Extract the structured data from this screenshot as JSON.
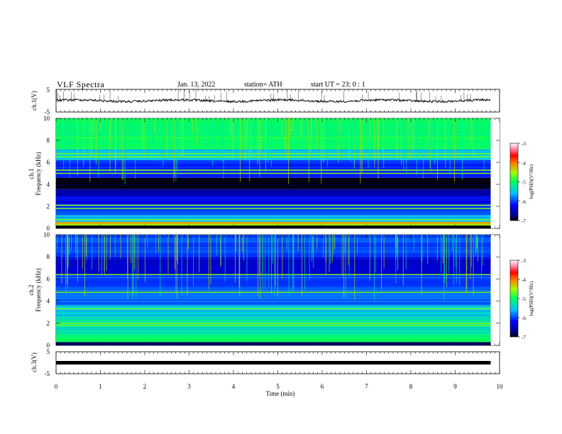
{
  "header": {
    "title": "VLF  Spectra",
    "date": "Jan. 13, 2022",
    "station": "station= ATH",
    "start": "start  UT  =    23: 0   : 1"
  },
  "chart_data": [
    {
      "type": "line",
      "name": "ch1_voltage",
      "ylabel": "ch.1(V)",
      "ylim": [
        -5,
        5
      ],
      "yticks": [
        "5",
        "-5"
      ],
      "xlim": [
        0,
        10
      ],
      "trace_level": 0
    },
    {
      "type": "heatmap",
      "name": "ch1_spectrogram",
      "ylabel": "ch.1\nFrequency (kHz)",
      "ylabel_line1": "ch.1",
      "ylabel_line2": "Frequency  (kHz)",
      "ylim": [
        0,
        10
      ],
      "yticks": [
        "0",
        "2",
        "4",
        "6",
        "8",
        "10"
      ],
      "xlim": [
        0,
        9.8
      ],
      "colorbar": {
        "label": "log(PSD)(V²/Hz)",
        "ticks": [
          "-3",
          "-4",
          "-5",
          "-6",
          "-7"
        ],
        "range": [
          -7,
          -3
        ]
      },
      "bands_khz": [
        {
          "from": 0.0,
          "to": 0.3,
          "level": -7.0
        },
        {
          "from": 0.3,
          "to": 0.6,
          "level": -4.3
        },
        {
          "from": 0.6,
          "to": 1.2,
          "level": -5.6
        },
        {
          "from": 1.2,
          "to": 2.2,
          "level": -6.0
        },
        {
          "from": 2.2,
          "to": 3.0,
          "level": -6.3
        },
        {
          "from": 3.0,
          "to": 3.6,
          "level": -6.6
        },
        {
          "from": 3.6,
          "to": 4.6,
          "level": -7.0
        },
        {
          "from": 4.6,
          "to": 6.2,
          "level": -6.1
        },
        {
          "from": 6.2,
          "to": 7.2,
          "level": -5.5
        },
        {
          "from": 7.2,
          "to": 10.0,
          "level": -5.0
        }
      ],
      "lines_khz": [
        0.3,
        0.8,
        1.8,
        2.1,
        5.0,
        5.3,
        6.5,
        6.8
      ]
    },
    {
      "type": "heatmap",
      "name": "ch2_spectrogram",
      "ylabel_line1": "ch.2",
      "ylabel_line2": "Frequency  (kHz)",
      "ylim": [
        0,
        10
      ],
      "yticks": [
        "0",
        "2",
        "4",
        "6",
        "8",
        "10"
      ],
      "xlim": [
        0,
        9.8
      ],
      "colorbar": {
        "label": "log(PSD)(V²/Hz)",
        "ticks": [
          "-3",
          "-4",
          "-5",
          "-6",
          "-7"
        ],
        "range": [
          -7,
          -3
        ]
      },
      "bands_khz": [
        {
          "from": 0.0,
          "to": 0.3,
          "level": -6.8
        },
        {
          "from": 0.3,
          "to": 1.0,
          "level": -5.0
        },
        {
          "from": 1.0,
          "to": 2.6,
          "level": -5.3
        },
        {
          "from": 2.6,
          "to": 3.6,
          "level": -5.5
        },
        {
          "from": 3.6,
          "to": 5.0,
          "level": -5.9
        },
        {
          "from": 5.0,
          "to": 6.4,
          "level": -6.0
        },
        {
          "from": 6.4,
          "to": 8.0,
          "level": -6.4
        },
        {
          "from": 8.0,
          "to": 10.0,
          "level": -6.0
        }
      ],
      "lines_khz": [
        1.8,
        2.0,
        3.3,
        4.8,
        6.4
      ]
    },
    {
      "type": "line",
      "name": "ch3_voltage",
      "ylabel": "ch.3(V)",
      "ylim": [
        -5,
        5
      ],
      "yticks": [
        "5",
        "-5"
      ],
      "xlim": [
        0,
        10
      ],
      "trace_level": 0
    }
  ],
  "xaxis": {
    "label": "Time  (min)",
    "ticks": [
      "0",
      "1",
      "2",
      "3",
      "4",
      "5",
      "6",
      "7",
      "8",
      "9",
      "10"
    ],
    "range": [
      0,
      10
    ]
  }
}
